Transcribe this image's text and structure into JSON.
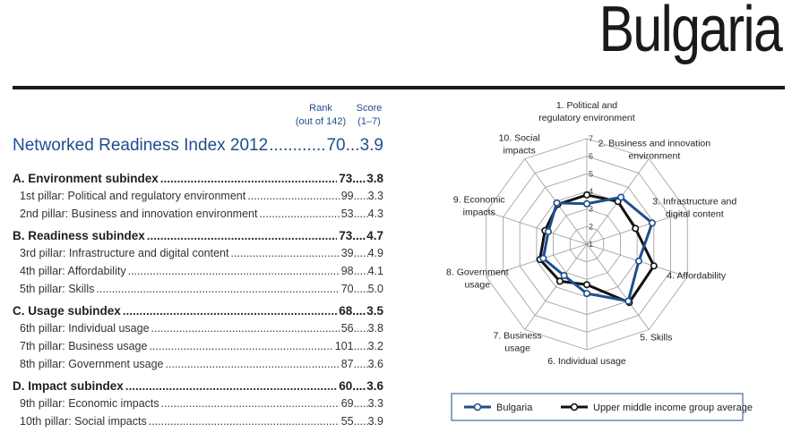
{
  "country": "Bulgaria",
  "columns": {
    "rank_label": "Rank",
    "rank_sub": "(out of 142)",
    "score_label": "Score",
    "score_sub": "(1–7)"
  },
  "nri": {
    "label": "Networked Readiness Index 2012",
    "rank": "70",
    "score": "3.9"
  },
  "rows": [
    {
      "type": "sub",
      "label": "A. Environment subindex",
      "rank": "73",
      "score": "3.8"
    },
    {
      "type": "pillar",
      "label": "1st pillar: Political and regulatory environment",
      "rank": "99",
      "score": "3.3"
    },
    {
      "type": "pillar",
      "label": "2nd pillar: Business and innovation environment",
      "rank": "53",
      "score": "4.3"
    },
    {
      "type": "sub",
      "label": "B. Readiness subindex",
      "rank": "73",
      "score": "4.7"
    },
    {
      "type": "pillar",
      "label": "3rd pillar: Infrastructure and digital content",
      "rank": "39",
      "score": "4.9"
    },
    {
      "type": "pillar",
      "label": "4th pillar: Affordability",
      "rank": "98",
      "score": "4.1"
    },
    {
      "type": "pillar",
      "label": "5th pillar: Skills",
      "rank": "70",
      "score": "5.0"
    },
    {
      "type": "sub",
      "label": "C. Usage subindex",
      "rank": "68",
      "score": "3.5"
    },
    {
      "type": "pillar",
      "label": "6th pillar: Individual usage",
      "rank": "56",
      "score": "3.8"
    },
    {
      "type": "pillar",
      "label": "7th pillar: Business usage",
      "rank": "101",
      "score": "3.2"
    },
    {
      "type": "pillar",
      "label": "8th pillar: Government usage",
      "rank": "87",
      "score": "3.6"
    },
    {
      "type": "sub",
      "label": "D. Impact subindex",
      "rank": "60",
      "score": "3.6"
    },
    {
      "type": "pillar",
      "label": "9th pillar: Economic impacts",
      "rank": "69",
      "score": "3.3"
    },
    {
      "type": "pillar",
      "label": "10th pillar: Social impacts",
      "rank": "55",
      "score": "3.9"
    }
  ],
  "chart_data": {
    "type": "radar",
    "title": "",
    "axes": [
      "1. Political and regulatory environment",
      "2. Business and innovation environment",
      "3. Infrastructure and digital content",
      "4. Affordability",
      "5. Skills",
      "6. Individual usage",
      "7. Business usage",
      "8. Government usage",
      "9. Economic impacts",
      "10. Social impacts"
    ],
    "axis_labels": [
      [
        "1. Political and",
        "regulatory environment"
      ],
      [
        "2. Business and innovation",
        "environment"
      ],
      [
        "3. Infrastructure and",
        "digital content"
      ],
      [
        "4. Affordability"
      ],
      [
        "5. Skills"
      ],
      [
        "6. Individual usage"
      ],
      [
        "7. Business",
        "usage"
      ],
      [
        "8. Government",
        "usage"
      ],
      [
        "9. Economic",
        "impacts"
      ],
      [
        "10. Social",
        "impacts"
      ]
    ],
    "scale": [
      1,
      7
    ],
    "ticks": [
      1,
      2,
      3,
      4,
      5,
      6,
      7
    ],
    "series": [
      {
        "name": "Bulgaria",
        "color": "#1f4e8c",
        "values": [
          3.3,
          4.3,
          4.9,
          4.1,
          5.0,
          3.8,
          3.2,
          3.6,
          3.3,
          3.9
        ]
      },
      {
        "name": "Upper middle income group average",
        "color": "#111111",
        "values": [
          3.8,
          4.0,
          3.9,
          5.0,
          5.1,
          3.3,
          3.6,
          3.8,
          3.5,
          3.8
        ]
      }
    ],
    "legend": "bottom"
  }
}
